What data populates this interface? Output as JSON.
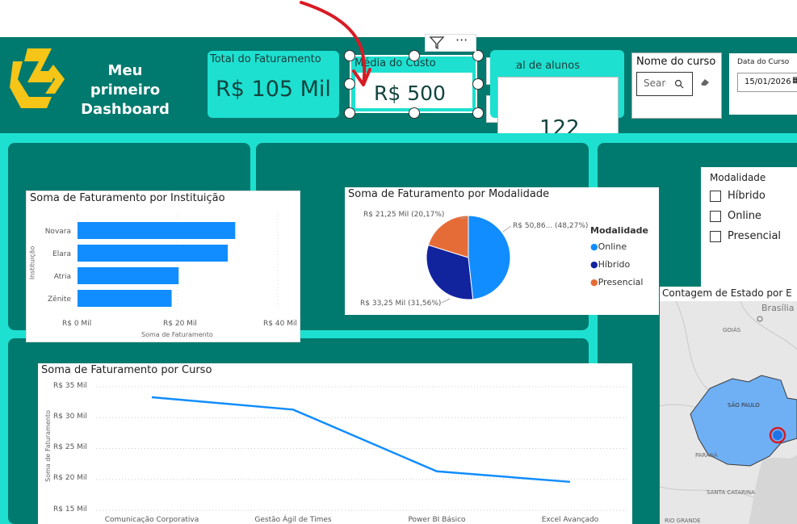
{
  "brand": {
    "title_line1": "Meu primeiro",
    "title_line2": "Dashboard",
    "logo_color": "#f5c518"
  },
  "kpis": {
    "faturamento": {
      "label": "Total do Faturamento",
      "value": "R$ 105 Mil"
    },
    "custo": {
      "label": "Média do Custo",
      "value": "R$ 500"
    },
    "alunos": {
      "label": "Total de alunos",
      "value": "122"
    }
  },
  "slicers": {
    "curso": {
      "label": "Nome do curso",
      "placeholder": "Search"
    },
    "data": {
      "label": "Data do Curso",
      "value": "15/01/2026"
    },
    "modalidade": {
      "label": "Modalidade",
      "options": [
        "Híbrido",
        "Online",
        "Presencial"
      ]
    }
  },
  "colors": {
    "canvas": "#00796e",
    "accent": "#1ee0d0",
    "series": "#118dff",
    "online": "#118dff",
    "hibrido": "#12239e",
    "presencial": "#e66c37"
  },
  "charts": {
    "instituicao": {
      "title": "Soma de Faturamento por Instituição",
      "ylabel": "Instituição",
      "xlabel": "Soma de Faturamento",
      "ticks": [
        "R$ 0 Mil",
        "R$ 20 Mil",
        "R$ 40 Mil"
      ]
    },
    "modalidade": {
      "title": "Soma de Faturamento por Modalidade",
      "legend_title": "Modalidade",
      "labels": [
        "R$ 50,86... (48,27%)",
        "R$ 33,25 Mil (31,56%)",
        "R$ 21,25 Mil (20,17%)"
      ]
    },
    "curso": {
      "title": "Soma de Faturamento por Curso",
      "ylabel": "Soma de Faturamento",
      "ticks": [
        "R$ 35 Mil",
        "R$ 30 Mil",
        "R$ 25 Mil",
        "R$ 20 Mil",
        "R$ 15 Mil"
      ]
    },
    "mapa": {
      "title": "Contagem de Estado por E",
      "places": [
        "Brasília",
        "GOIÁS",
        "SÃO PAULO",
        "PARANÁ",
        "SANTA CATARINA",
        "RIO GRANDE"
      ]
    }
  },
  "chart_data": [
    {
      "type": "bar",
      "title": "Soma de Faturamento por Instituição",
      "categories": [
        "Novara",
        "Elara",
        "Atria",
        "Zênite"
      ],
      "values": [
        31.5,
        30.0,
        20.2,
        18.8
      ],
      "xlabel": "Soma de Faturamento",
      "ylabel": "Instituição",
      "xlim": [
        0,
        45
      ]
    },
    {
      "type": "pie",
      "title": "Soma de Faturamento por Modalidade",
      "categories": [
        "Online",
        "Híbrido",
        "Presencial"
      ],
      "values": [
        50.86,
        33.25,
        21.25
      ],
      "percents": [
        48.27,
        31.56,
        20.17
      ],
      "legend": "right"
    },
    {
      "type": "line",
      "title": "Soma de Faturamento por Curso",
      "categories": [
        "Comunicação Corporativa",
        "Gestão Ágil de Times",
        "Power BI Básico",
        "Excel Avançado"
      ],
      "values": [
        33.3,
        31.3,
        21.3,
        19.6
      ],
      "ylabel": "Soma de Faturamento",
      "ylim": [
        15,
        35
      ]
    }
  ]
}
